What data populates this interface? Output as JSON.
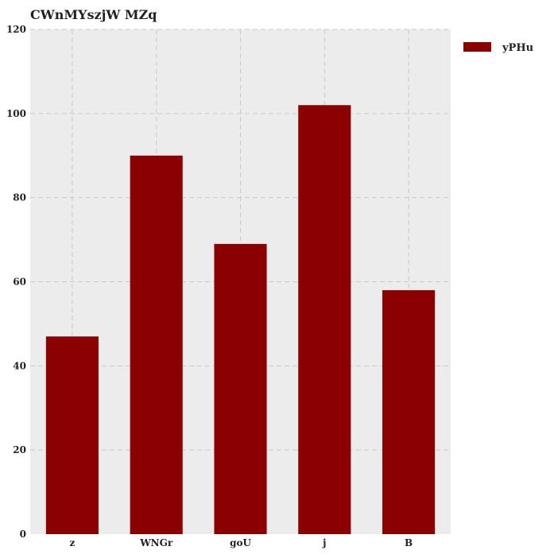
{
  "chart_data": {
    "type": "bar",
    "title": "CWnMYszjW MZq",
    "xlabel": "",
    "ylabel": "",
    "categories": [
      "z",
      "WNGr",
      "goU",
      "j",
      "B"
    ],
    "series": [
      {
        "name": "yPHu",
        "values": [
          47,
          90,
          69,
          102,
          58
        ],
        "color": "#8b0000"
      }
    ],
    "ylim": [
      0,
      120
    ],
    "yticks": [
      0,
      20,
      40,
      60,
      80,
      100,
      120
    ],
    "grid": true,
    "legend": "top-right, outside plot",
    "background": "#ececec",
    "grid_color": "#c8c8c8"
  }
}
